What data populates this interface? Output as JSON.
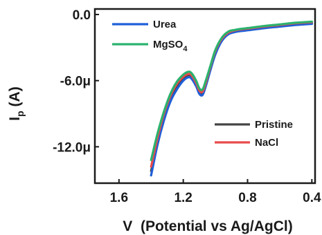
{
  "chart_data": {
    "type": "line",
    "xlabel": "V  (Potential vs Ag/AgCl)",
    "ylabel_main": "I",
    "ylabel_sub": "p",
    "ylabel_rest": " (A)",
    "xlim": [
      1.75,
      0.38
    ],
    "ylim": [
      -15.3,
      0.5
    ],
    "x_reversed": true,
    "x_ticks": [
      {
        "value": 1.6,
        "label": "1.6"
      },
      {
        "value": 1.2,
        "label": "1.2"
      },
      {
        "value": 0.8,
        "label": "0.8"
      },
      {
        "value": 0.4,
        "label": "0.4"
      }
    ],
    "y_ticks": [
      {
        "value": 0.0,
        "label": "0.0"
      },
      {
        "value": -6.0,
        "label": "-6.0μ"
      },
      {
        "value": -12.0,
        "label": "-12.0μ"
      }
    ],
    "y_unit": "μA",
    "series": [
      {
        "name": "Urea",
        "color": "#1f5fd8",
        "x": [
          1.4,
          1.36,
          1.32,
          1.28,
          1.24,
          1.2,
          1.17,
          1.15,
          1.12,
          1.1,
          1.08,
          1.06,
          1.03,
          1.0,
          0.96,
          0.92,
          0.88,
          0.84,
          0.78,
          0.7,
          0.6,
          0.5,
          0.4
        ],
        "y": [
          -14.6,
          -11.8,
          -9.6,
          -7.9,
          -6.8,
          -6.0,
          -5.7,
          -5.8,
          -6.5,
          -7.2,
          -7.3,
          -6.5,
          -5.0,
          -3.6,
          -2.4,
          -1.8,
          -1.6,
          -1.5,
          -1.4,
          -1.25,
          -1.1,
          -0.95,
          -0.85
        ]
      },
      {
        "name": "MgSO4",
        "legend_main": "MgSO",
        "legend_sub": "4",
        "color": "#2bb26e",
        "x": [
          1.4,
          1.36,
          1.32,
          1.28,
          1.24,
          1.2,
          1.17,
          1.15,
          1.12,
          1.1,
          1.08,
          1.06,
          1.03,
          1.0,
          0.96,
          0.92,
          0.88,
          0.84,
          0.78,
          0.7,
          0.6,
          0.5,
          0.4
        ],
        "y": [
          -13.2,
          -10.8,
          -8.8,
          -7.2,
          -6.1,
          -5.45,
          -5.2,
          -5.3,
          -6.0,
          -6.7,
          -6.8,
          -6.0,
          -4.6,
          -3.2,
          -2.1,
          -1.55,
          -1.4,
          -1.3,
          -1.2,
          -1.05,
          -0.9,
          -0.75,
          -0.65
        ]
      },
      {
        "name": "Pristine",
        "color": "#444444",
        "x": [
          1.4,
          1.36,
          1.32,
          1.28,
          1.24,
          1.2,
          1.17,
          1.15,
          1.12,
          1.1,
          1.08,
          1.06,
          1.03,
          1.0,
          0.96,
          0.92,
          0.88,
          0.84,
          0.78,
          0.7,
          0.6,
          0.5,
          0.4
        ],
        "y": [
          -14.2,
          -11.5,
          -9.3,
          -7.6,
          -6.5,
          -5.8,
          -5.5,
          -5.6,
          -6.3,
          -7.0,
          -7.1,
          -6.3,
          -4.8,
          -3.4,
          -2.3,
          -1.7,
          -1.5,
          -1.4,
          -1.3,
          -1.15,
          -1.0,
          -0.85,
          -0.75
        ]
      },
      {
        "name": "NaCl",
        "color": "#e84a4a",
        "x": [
          1.4,
          1.36,
          1.32,
          1.28,
          1.24,
          1.2,
          1.17,
          1.15,
          1.12,
          1.1,
          1.08,
          1.06,
          1.03,
          1.0,
          0.96,
          0.92,
          0.88,
          0.84,
          0.78,
          0.7,
          0.6,
          0.5,
          0.4
        ],
        "y": [
          -13.8,
          -11.2,
          -9.0,
          -7.4,
          -6.3,
          -5.65,
          -5.4,
          -5.5,
          -6.2,
          -6.9,
          -7.0,
          -6.2,
          -4.7,
          -3.3,
          -2.2,
          -1.65,
          -1.45,
          -1.35,
          -1.25,
          -1.1,
          -0.95,
          -0.8,
          -0.7
        ]
      }
    ],
    "legend": {
      "top_left": [
        "Urea",
        "MgSO4"
      ],
      "bottom_right": [
        "Pristine",
        "NaCl"
      ]
    },
    "grid": false
  }
}
